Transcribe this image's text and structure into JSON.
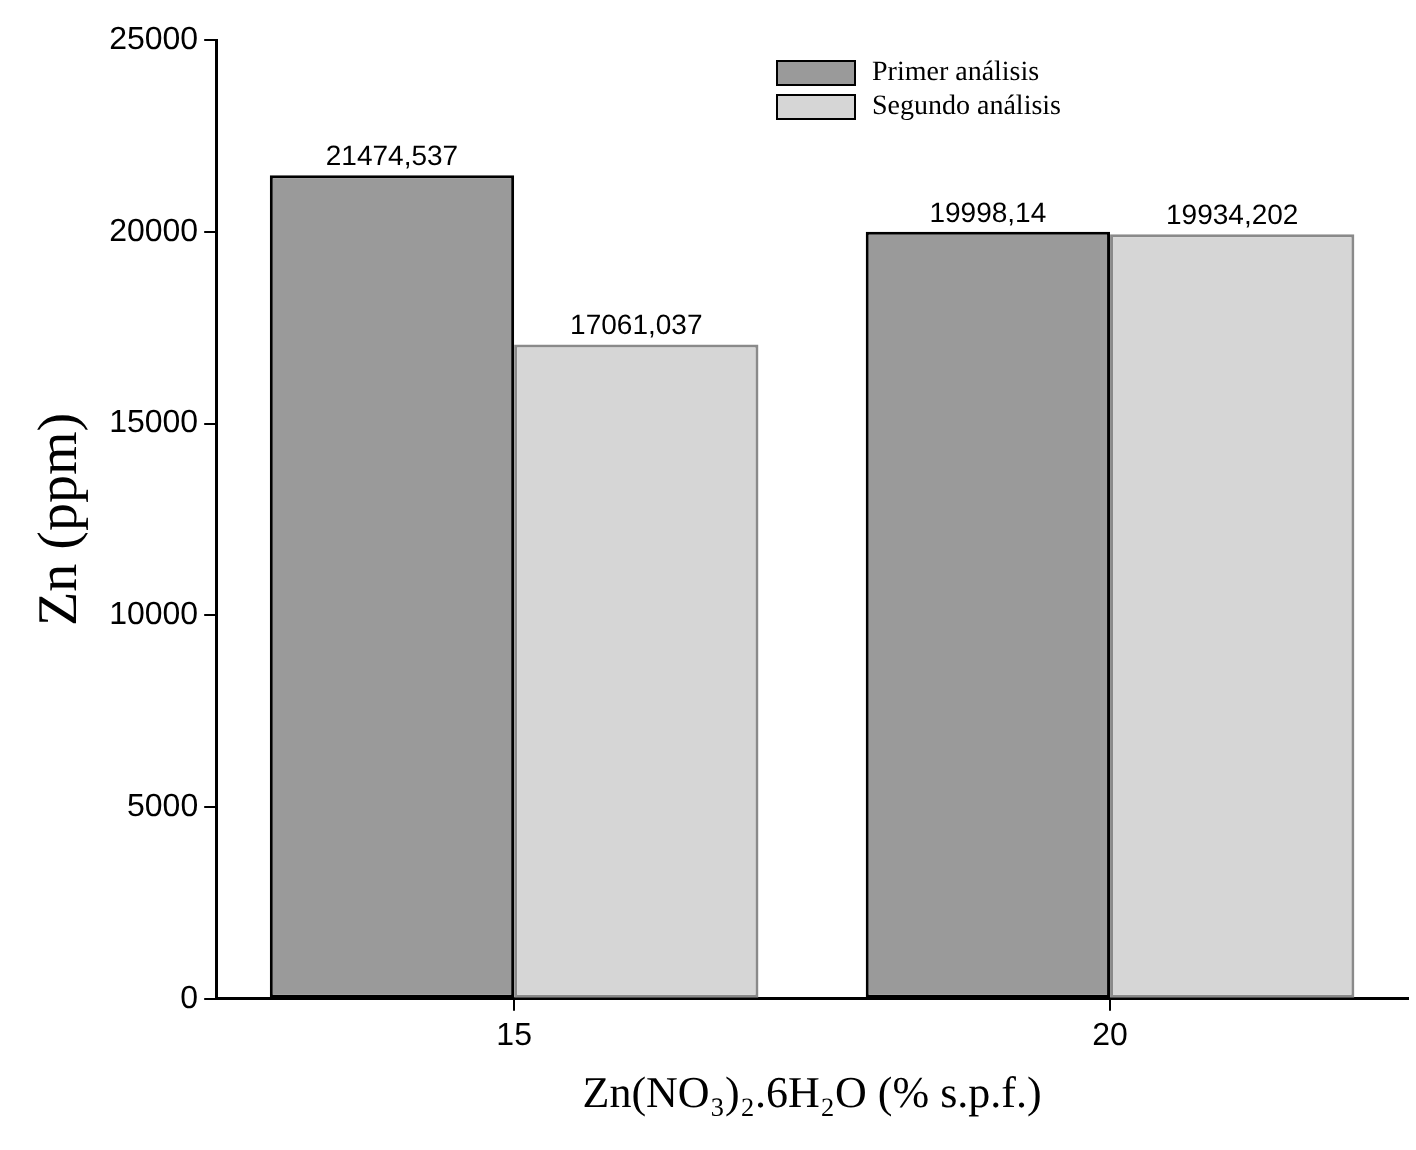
{
  "chart_data": {
    "type": "bar",
    "xlabel": "Zn(NO₃)₂.6H₂O (% s.p.f.)",
    "ylabel": "Zn (ppm)",
    "categories": [
      "15",
      "20"
    ],
    "series": [
      {
        "name": "Primer análisis",
        "color": "#9a9a9a",
        "values": [
          21474.537,
          19998.14
        ],
        "value_labels": [
          "21474,537",
          "19998,14"
        ]
      },
      {
        "name": "Segundo análisis",
        "color": "#d6d6d6",
        "values": [
          17061.037,
          19934.202
        ],
        "value_labels": [
          "17061,037",
          "19934,202"
        ]
      }
    ],
    "ylim": [
      0,
      25000
    ],
    "yticks": [
      0,
      5000,
      10000,
      15000,
      20000,
      25000
    ],
    "grid": false,
    "legend": "top"
  }
}
